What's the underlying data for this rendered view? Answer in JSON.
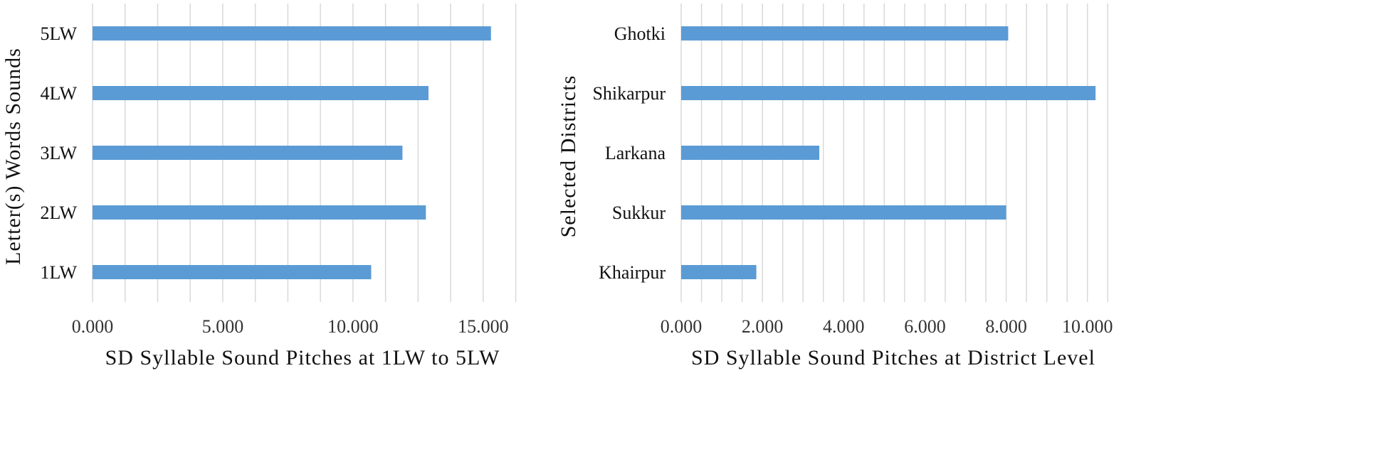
{
  "chart_data": [
    {
      "type": "bar",
      "orientation": "horizontal",
      "categories": [
        "1LW",
        "2LW",
        "3LW",
        "4LW",
        "5LW"
      ],
      "values": [
        10.7,
        12.8,
        11.9,
        12.9,
        15.3
      ],
      "xlabel": "SD Syllable Sound Pitches at 1LW to 5LW",
      "ylabel": "Letter(s) Words Sounds",
      "xlim": [
        0,
        17
      ],
      "major_ticks": [
        0,
        5,
        10,
        15
      ],
      "tick_labels": [
        "0.000",
        "5.000",
        "10.000",
        "15.000"
      ],
      "minor_grid_step": 1.25,
      "grid": true,
      "bar_color": "#5b9bd5"
    },
    {
      "type": "bar",
      "orientation": "horizontal",
      "categories": [
        "Khairpur",
        "Sukkur",
        "Larkana",
        "Shikarpur",
        "Ghotki"
      ],
      "values": [
        1.85,
        8.0,
        3.4,
        10.2,
        8.05
      ],
      "xlabel": "SD Syllable Sound Pitches at District Level",
      "ylabel": "Selected Districts",
      "xlim": [
        0,
        10.6
      ],
      "major_ticks": [
        0,
        2,
        4,
        6,
        8,
        10
      ],
      "tick_labels": [
        "0.000",
        "2.000",
        "4.000",
        "6.000",
        "8.000",
        "10.000"
      ],
      "minor_grid_step": 0.5,
      "grid": true,
      "bar_color": "#5b9bd5"
    }
  ]
}
